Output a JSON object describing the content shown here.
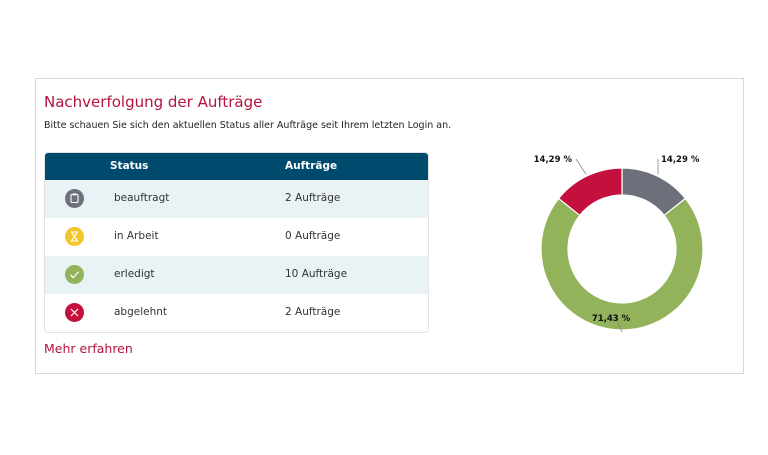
{
  "header": {
    "title": "Nachverfolgung der Aufträge",
    "subtitle": "Bitte schauen Sie sich den aktuellen Status aller Aufträge seit Ihrem letzten Login an."
  },
  "table": {
    "columns": [
      "Status",
      "Aufträge"
    ],
    "rows": [
      {
        "status": "beauftragt",
        "count": "2 Aufträge",
        "icon": "clipboard-icon",
        "color": "#6b707a"
      },
      {
        "status": "in Arbeit",
        "count": "0 Aufträge",
        "icon": "hourglass-icon",
        "color": "#f3c62f"
      },
      {
        "status": "erledigt",
        "count": "10 Aufträge",
        "icon": "checkmark-icon",
        "color": "#92b35a"
      },
      {
        "status": "abgelehnt",
        "count": "2 Aufträge",
        "icon": "cross-icon",
        "color": "#c4103d"
      }
    ]
  },
  "link": {
    "more": "Mehr erfahren"
  },
  "chart_data": {
    "type": "pie",
    "donut": true,
    "categories": [
      "beauftragt",
      "in Arbeit",
      "erledigt",
      "abgelehnt"
    ],
    "values": [
      2,
      0,
      10,
      2
    ],
    "colors": [
      "#6b707a",
      "#f3c62f",
      "#92b35a",
      "#c4103d"
    ],
    "labels": [
      "14,29 %",
      "",
      "71,43 %",
      "14,29 %"
    ]
  }
}
